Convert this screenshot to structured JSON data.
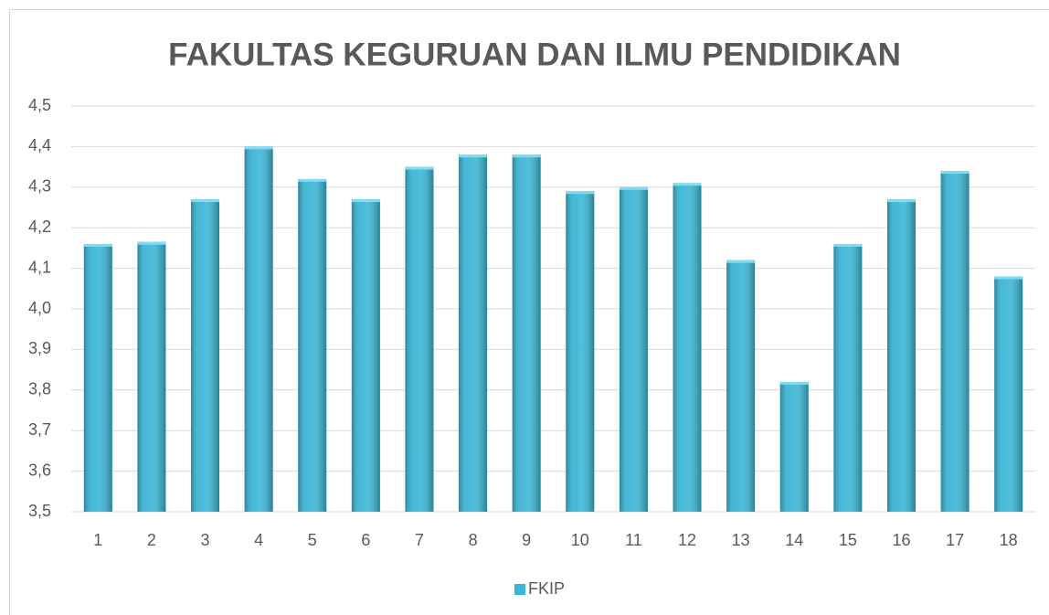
{
  "chart_data": {
    "type": "bar",
    "title": "FAKULTAS KEGURUAN DAN ILMU PENDIDIKAN",
    "categories": [
      "1",
      "2",
      "3",
      "4",
      "5",
      "6",
      "7",
      "8",
      "9",
      "10",
      "11",
      "12",
      "13",
      "14",
      "15",
      "16",
      "17",
      "18"
    ],
    "series": [
      {
        "name": "FKIP",
        "color": "#3bb6d6",
        "values": [
          4.16,
          4.165,
          4.27,
          4.4,
          4.32,
          4.27,
          4.35,
          4.38,
          4.38,
          4.29,
          4.3,
          4.31,
          4.12,
          3.82,
          4.16,
          4.27,
          4.34,
          4.08
        ]
      }
    ],
    "ylim": [
      3.5,
      4.5
    ],
    "yticks": [
      {
        "value": 3.5,
        "label": "3,5"
      },
      {
        "value": 3.6,
        "label": "3,6"
      },
      {
        "value": 3.7,
        "label": "3,7"
      },
      {
        "value": 3.8,
        "label": "3,8"
      },
      {
        "value": 3.9,
        "label": "3,9"
      },
      {
        "value": 4.0,
        "label": "4,0"
      },
      {
        "value": 4.1,
        "label": "4,1"
      },
      {
        "value": 4.2,
        "label": "4,2"
      },
      {
        "value": 4.3,
        "label": "4,3"
      },
      {
        "value": 4.4,
        "label": "4,4"
      },
      {
        "value": 4.5,
        "label": "4,5"
      }
    ],
    "grid": true,
    "legend": "bottom"
  }
}
